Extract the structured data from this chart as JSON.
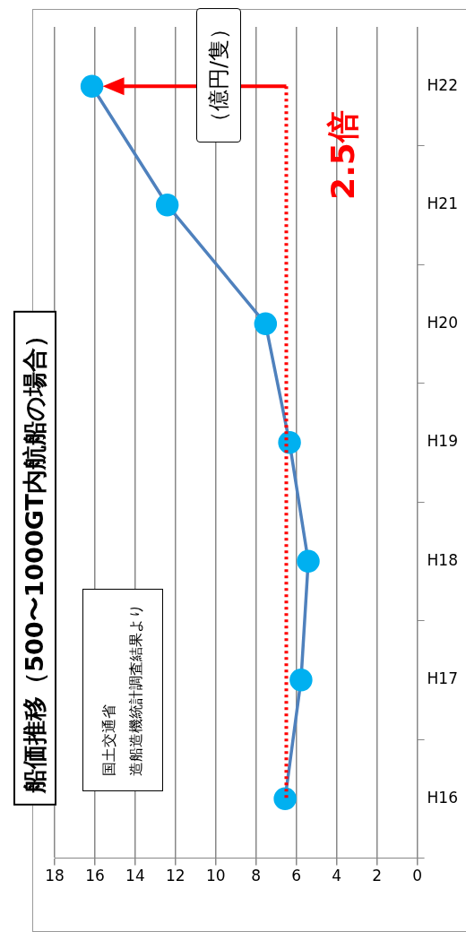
{
  "chart_data": {
    "type": "line",
    "title": "船価推移（500〜1000GT内航船の場合）",
    "ylabel": "（億円/隻）",
    "categories": [
      "H22",
      "H21",
      "H20",
      "H19",
      "H18",
      "H17",
      "H16"
    ],
    "series": [
      {
        "color": "#4f81bd",
        "values": [
          16.15,
          12.41,
          7.53,
          6.34,
          5.41,
          5.77,
          6.56
        ]
      }
    ],
    "orientation": "horizontal",
    "xlim": [
      18,
      0
    ],
    "xticks": [
      0,
      2,
      4,
      6,
      8,
      10,
      12,
      14,
      16,
      18
    ],
    "grid": "x",
    "legend": false,
    "marker": "circle",
    "line_style": "solid",
    "ref_lines": [
      {
        "axis": "x",
        "value": 6.5,
        "color": "#ff0000",
        "line_style": "dotted"
      }
    ],
    "annotations": [
      "2.5倍",
      "国土交通省",
      "造船造機統計調査結果より"
    ]
  }
}
